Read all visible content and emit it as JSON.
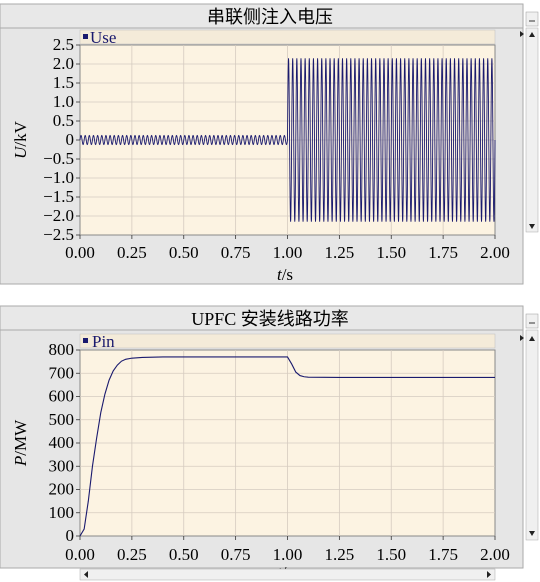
{
  "chart_data": [
    {
      "type": "line",
      "title": "串联侧注入电压",
      "legend": "Use",
      "xlabel_var": "t",
      "xlabel_unit": "/s",
      "ylabel_var": "U",
      "ylabel_unit": "/kV",
      "xlim": [
        0,
        2
      ],
      "ylim": [
        -2.5,
        2.5
      ],
      "xticks": [
        "0.00",
        "0.25",
        "0.50",
        "0.75",
        "1.00",
        "1.25",
        "1.50",
        "1.75",
        "2.00"
      ],
      "yticks": [
        "2.5",
        "2.0",
        "1.5",
        "1.0",
        "0.5",
        "0",
        "−0.5",
        "−1.0",
        "−1.5",
        "−2.0",
        "−2.5"
      ],
      "grid": true,
      "series": [
        {
          "name": "Use",
          "description": "Sinusoidal oscillation; small amplitude before t=1.0 s, large amplitude after",
          "segments": [
            {
              "t_start": 0.0,
              "t_end": 1.0,
              "amplitude": 0.12,
              "center": 0.0
            },
            {
              "t_start": 1.0,
              "t_end": 2.0,
              "amplitude": 2.15,
              "center": 0.0
            }
          ],
          "cycles_per_second": 50
        }
      ]
    },
    {
      "type": "line",
      "title": "UPFC 安装线路功率",
      "legend": "Pin",
      "xlabel_var": "t",
      "xlabel_unit": "/s",
      "ylabel_var": "P",
      "ylabel_unit": "/MW",
      "xlim": [
        0,
        2
      ],
      "ylim": [
        0,
        800
      ],
      "xticks": [
        "0.00",
        "0.25",
        "0.50",
        "0.75",
        "1.00",
        "1.25",
        "1.50",
        "1.75",
        "2.00"
      ],
      "yticks": [
        "800",
        "700",
        "600",
        "500",
        "400",
        "300",
        "200",
        "100",
        "0"
      ],
      "grid": true,
      "series": [
        {
          "name": "Pin",
          "points": [
            [
              0.0,
              0
            ],
            [
              0.02,
              30
            ],
            [
              0.04,
              150
            ],
            [
              0.06,
              300
            ],
            [
              0.08,
              420
            ],
            [
              0.1,
              530
            ],
            [
              0.12,
              610
            ],
            [
              0.14,
              670
            ],
            [
              0.16,
              710
            ],
            [
              0.18,
              735
            ],
            [
              0.2,
              752
            ],
            [
              0.22,
              760
            ],
            [
              0.25,
              765
            ],
            [
              0.3,
              768
            ],
            [
              0.4,
              770
            ],
            [
              0.6,
              770
            ],
            [
              0.8,
              770
            ],
            [
              1.0,
              770
            ],
            [
              1.02,
              740
            ],
            [
              1.04,
              705
            ],
            [
              1.06,
              690
            ],
            [
              1.08,
              685
            ],
            [
              1.1,
              683
            ],
            [
              1.25,
              682
            ],
            [
              1.5,
              682
            ],
            [
              1.75,
              682
            ],
            [
              2.0,
              682
            ]
          ]
        }
      ]
    }
  ],
  "colors": {
    "plot_bg": "#fcf3e2",
    "grid": "#d5cbc0",
    "line": "#1a1a6e",
    "frame": "#888888",
    "titlebar": "#e8e8e8",
    "scroll": "#e0e0e0"
  }
}
